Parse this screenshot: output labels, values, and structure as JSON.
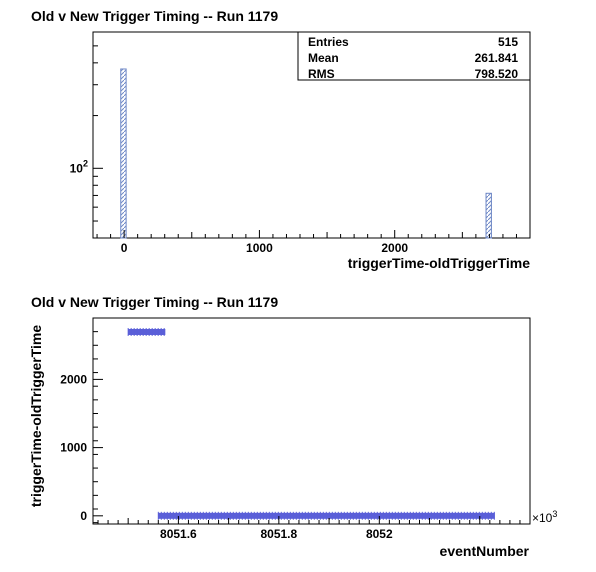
{
  "chart_data": [
    {
      "type": "bar",
      "title": "Old v New Trigger Timing -- Run 1179",
      "xlabel": "triggerTime-oldTriggerTime",
      "ylabel": "",
      "xlim": [
        -230,
        3000
      ],
      "yscale": "log",
      "ylim": [
        40,
        600
      ],
      "x_ticks": [
        0,
        1000,
        2000
      ],
      "y_ticks": [
        {
          "value": 100,
          "base": "10",
          "exp": "2"
        }
      ],
      "bins": [
        {
          "x_low": -25,
          "x_high": 15,
          "value": 369
        },
        {
          "x_low": 2675,
          "x_high": 2715,
          "value": 72
        }
      ],
      "bar_color": "#6f88c6",
      "legend": "none",
      "stats": {
        "position": "top-right",
        "rows": [
          {
            "label": "Entries",
            "value": "515"
          },
          {
            "label": "Mean",
            "value": "261.841"
          },
          {
            "label": "RMS",
            "value": "798.520"
          }
        ]
      }
    },
    {
      "type": "scatter",
      "title": "Old v New Trigger Timing -- Run 1179",
      "xlabel": "eventNumber",
      "ylabel": "triggerTime-oldTriggerTime",
      "xlim": [
        8051.43,
        8052.3
      ],
      "ylim": [
        -120,
        2900
      ],
      "x_ticks": [
        8051.6,
        8051.8,
        8052
      ],
      "y_ticks": [
        0,
        1000,
        2000
      ],
      "x_multiplier": "×10",
      "x_multiplier_exp": "3",
      "marker_color": "#5a5fd8",
      "legend": "none",
      "series": [
        {
          "x_range": [
            8051.5,
            8051.574
          ],
          "y": 2695
        },
        {
          "x_range": [
            8051.56,
            8052.23
          ],
          "y": 0
        }
      ]
    }
  ]
}
